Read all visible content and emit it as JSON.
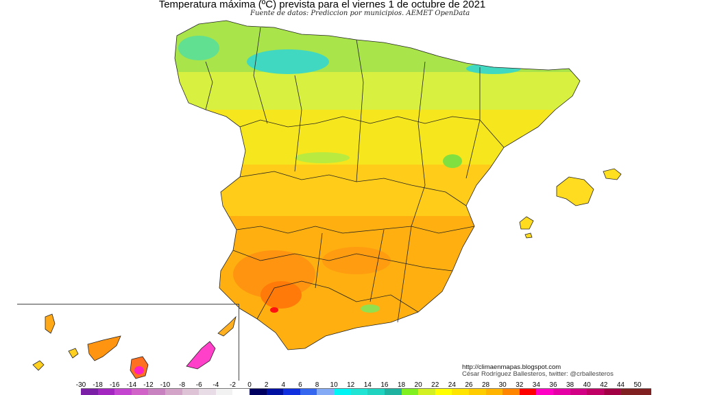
{
  "header": {
    "title": "Temperatura máxima (ºC) prevista para el viernes 1 de octubre de 2021",
    "subtitle": "Fuente de datos: Prediccion por municipios. AEMET OpenData"
  },
  "credits": {
    "url": "http://climaenmapas.blogspot.com",
    "author": "César Rodríguez Ballesteros, twitter: @crballesteros"
  },
  "legend": {
    "labels": [
      "-30",
      "-18",
      "-16",
      "-14",
      "-12",
      "-10",
      "-8",
      "-6",
      "-4",
      "-2",
      "0",
      "2",
      "4",
      "6",
      "8",
      "10",
      "12",
      "14",
      "16",
      "18",
      "20",
      "22",
      "24",
      "26",
      "28",
      "30",
      "32",
      "34",
      "36",
      "38",
      "40",
      "42",
      "44",
      "50"
    ],
    "colors": [
      "#7a1fa6",
      "#a326c0",
      "#c445d0",
      "#d062c8",
      "#c882c0",
      "#d4a4c8",
      "#dec2d6",
      "#e8dce6",
      "#f2f2f2",
      "#ffffff",
      "#000060",
      "#0010a0",
      "#1030e0",
      "#3466f0",
      "#84aaf6",
      "#00f4f4",
      "#22e4d4",
      "#20d2c0",
      "#20b2a0",
      "#80f020",
      "#d2f022",
      "#ffff00",
      "#ffe400",
      "#ffcc00",
      "#ffb400",
      "#ff8400",
      "#ff0000",
      "#ff00c4",
      "#e400a4",
      "#d20084",
      "#c00064",
      "#a20044",
      "#802020"
    ]
  }
}
